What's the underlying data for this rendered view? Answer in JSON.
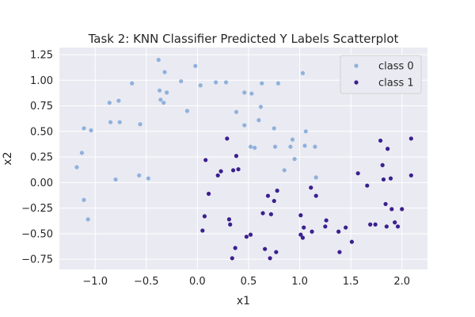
{
  "chart_data": {
    "type": "scatter",
    "title": "Task 2: KNN Classifier Predicted Y Labels Scatterplot",
    "xlabel": "x1",
    "ylabel": "x2",
    "xlim": [
      -1.35,
      2.25
    ],
    "ylim": [
      -0.85,
      1.32
    ],
    "x_ticks": [
      -1.0,
      -0.5,
      0.0,
      0.5,
      1.0,
      1.5,
      2.0
    ],
    "x_tick_labels": [
      "−1.0",
      "−0.5",
      "0.0",
      "0.5",
      "1.0",
      "1.5",
      "2.0"
    ],
    "y_ticks": [
      -0.75,
      -0.5,
      -0.25,
      0.0,
      0.25,
      0.5,
      0.75,
      1.0,
      1.25
    ],
    "y_tick_labels": [
      "−0.75",
      "−0.50",
      "−0.25",
      "0.00",
      "0.25",
      "0.50",
      "0.75",
      "1.00",
      "1.25"
    ],
    "grid": true,
    "legend_position": "top-right",
    "background_color": "#eaeaf2",
    "series": [
      {
        "name": "class 0",
        "color": "#8fb1dc",
        "points": [
          [
            -1.18,
            0.15
          ],
          [
            -1.13,
            0.29
          ],
          [
            -1.11,
            0.53
          ],
          [
            -1.11,
            -0.17
          ],
          [
            -1.07,
            -0.36
          ],
          [
            -1.04,
            0.51
          ],
          [
            -0.86,
            0.78
          ],
          [
            -0.85,
            0.59
          ],
          [
            -0.8,
            0.03
          ],
          [
            -0.77,
            0.8
          ],
          [
            -0.76,
            0.59
          ],
          [
            -0.64,
            0.97
          ],
          [
            -0.57,
            0.07
          ],
          [
            -0.56,
            0.57
          ],
          [
            -0.48,
            0.04
          ],
          [
            -0.38,
            1.2
          ],
          [
            -0.37,
            0.9
          ],
          [
            -0.36,
            0.81
          ],
          [
            -0.33,
            0.78
          ],
          [
            -0.32,
            1.08
          ],
          [
            -0.3,
            0.88
          ],
          [
            -0.16,
            0.99
          ],
          [
            -0.1,
            0.7
          ],
          [
            -0.02,
            1.14
          ],
          [
            0.03,
            0.95
          ],
          [
            0.18,
            0.98
          ],
          [
            0.28,
            0.98
          ],
          [
            0.38,
            0.69
          ],
          [
            0.46,
            0.88
          ],
          [
            0.46,
            0.56
          ],
          [
            0.52,
            0.35
          ],
          [
            0.53,
            0.87
          ],
          [
            0.56,
            0.34
          ],
          [
            0.6,
            0.61
          ],
          [
            0.62,
            0.74
          ],
          [
            0.63,
            0.97
          ],
          [
            0.75,
            0.53
          ],
          [
            0.76,
            0.35
          ],
          [
            0.79,
            0.97
          ],
          [
            0.85,
            0.12
          ],
          [
            0.91,
            0.35
          ],
          [
            0.93,
            0.42
          ],
          [
            0.95,
            0.23
          ],
          [
            1.03,
            1.07
          ],
          [
            1.05,
            0.36
          ],
          [
            1.06,
            0.5
          ],
          [
            1.15,
            0.35
          ],
          [
            1.16,
            0.05
          ]
        ]
      },
      {
        "name": "class 1",
        "color": "#3b1f8f",
        "points": [
          [
            0.05,
            -0.47
          ],
          [
            0.07,
            -0.33
          ],
          [
            0.08,
            0.22
          ],
          [
            0.11,
            -0.11
          ],
          [
            0.2,
            0.07
          ],
          [
            0.23,
            0.11
          ],
          [
            0.29,
            0.43
          ],
          [
            0.31,
            -0.36
          ],
          [
            0.32,
            -0.41
          ],
          [
            0.34,
            -0.74
          ],
          [
            0.35,
            0.12
          ],
          [
            0.37,
            -0.64
          ],
          [
            0.38,
            0.26
          ],
          [
            0.4,
            0.13
          ],
          [
            0.48,
            -0.53
          ],
          [
            0.52,
            -0.51
          ],
          [
            0.64,
            -0.3
          ],
          [
            0.66,
            -0.65
          ],
          [
            0.69,
            -0.13
          ],
          [
            0.71,
            -0.74
          ],
          [
            0.72,
            -0.31
          ],
          [
            0.75,
            -0.18
          ],
          [
            0.77,
            -0.68
          ],
          [
            0.78,
            -0.08
          ],
          [
            1.01,
            -0.32
          ],
          [
            1.01,
            -0.51
          ],
          [
            1.03,
            -0.54
          ],
          [
            1.04,
            -0.44
          ],
          [
            1.11,
            -0.05
          ],
          [
            1.12,
            -0.48
          ],
          [
            1.16,
            -0.13
          ],
          [
            1.25,
            -0.43
          ],
          [
            1.26,
            -0.37
          ],
          [
            1.38,
            -0.48
          ],
          [
            1.39,
            -0.68
          ],
          [
            1.45,
            -0.44
          ],
          [
            1.51,
            -0.58
          ],
          [
            1.57,
            0.09
          ],
          [
            1.66,
            -0.03
          ],
          [
            1.69,
            -0.41
          ],
          [
            1.74,
            -0.41
          ],
          [
            1.79,
            0.41
          ],
          [
            1.81,
            0.17
          ],
          [
            1.82,
            0.03
          ],
          [
            1.84,
            -0.21
          ],
          [
            1.85,
            -0.43
          ],
          [
            1.86,
            0.33
          ],
          [
            1.89,
            0.04
          ],
          [
            1.9,
            -0.26
          ],
          [
            1.93,
            -0.39
          ],
          [
            1.96,
            -0.43
          ],
          [
            2.0,
            -0.26
          ],
          [
            2.09,
            0.43
          ],
          [
            2.09,
            0.07
          ]
        ]
      }
    ]
  }
}
